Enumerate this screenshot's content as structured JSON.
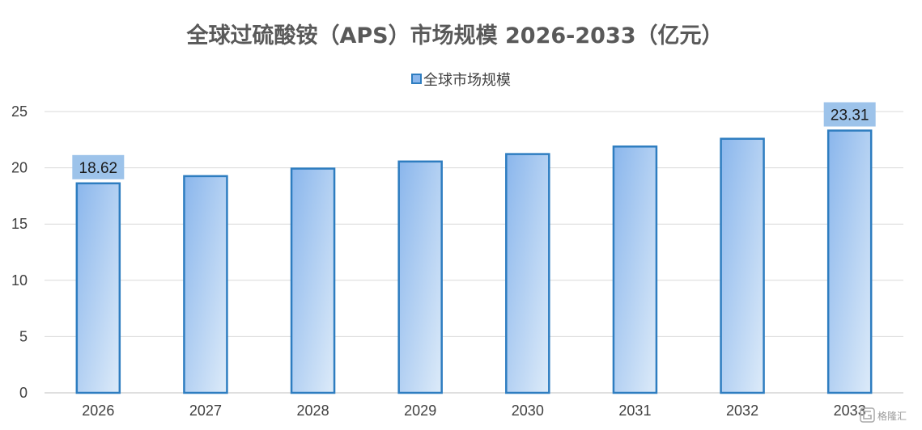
{
  "chart_data": {
    "type": "bar",
    "title": "全球过硫酸铵（APS）市场规模 2026-2033（亿元）",
    "categories": [
      "2026",
      "2027",
      "2028",
      "2029",
      "2030",
      "2031",
      "2032",
      "2033"
    ],
    "series": [
      {
        "name": "全球市场规模",
        "values": [
          18.62,
          19.26,
          19.93,
          20.56,
          21.22,
          21.89,
          22.58,
          23.31
        ]
      }
    ],
    "data_labels": {
      "0": "18.62",
      "7": "23.31"
    },
    "yticks": [
      "0",
      "5",
      "10",
      "15",
      "20",
      "25"
    ],
    "ylim": [
      0,
      25
    ],
    "grid": true,
    "legend": "top-center",
    "colors": {
      "bar_fill_start": "#8ab6ec",
      "bar_fill_end": "#ddebf9",
      "bar_border": "#2e7dc0",
      "label_box": "#9dc3ea",
      "grid": "#d9d9d9"
    }
  },
  "watermark": {
    "icon": "gelonghui-logo-icon",
    "text": "格隆汇"
  }
}
